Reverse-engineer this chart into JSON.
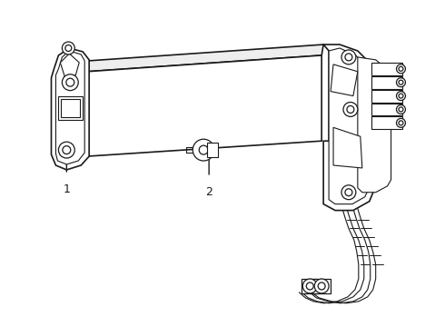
{
  "background_color": "#ffffff",
  "line_color": "#1a1a1a",
  "figsize": [
    4.9,
    3.6
  ],
  "dpi": 100,
  "label1": "1",
  "label2": "2"
}
